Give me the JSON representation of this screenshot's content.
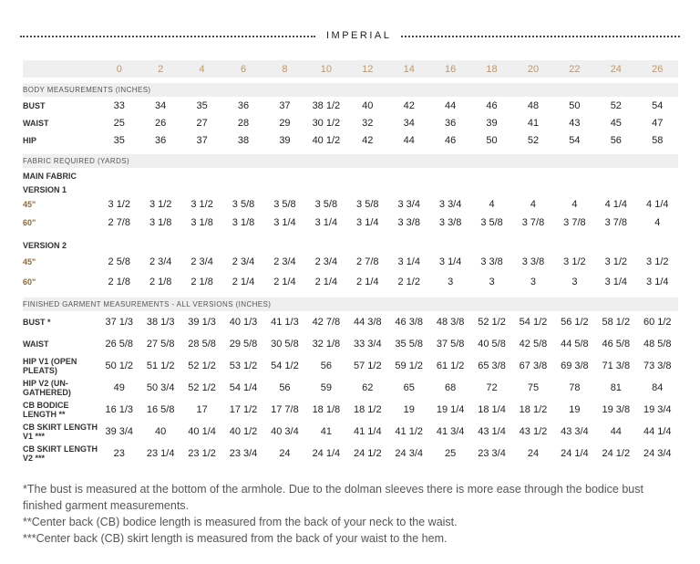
{
  "title": "IMPERIAL",
  "sizes": [
    "0",
    "2",
    "4",
    "6",
    "8",
    "10",
    "12",
    "14",
    "16",
    "18",
    "20",
    "22",
    "24",
    "26"
  ],
  "body_section": "BODY MEASUREMENTS (INCHES)",
  "body_rows": [
    {
      "label": "BUST",
      "values": [
        "33",
        "34",
        "35",
        "36",
        "37",
        "38 1/2",
        "40",
        "42",
        "44",
        "46",
        "48",
        "50",
        "52",
        "54"
      ]
    },
    {
      "label": "WAIST",
      "values": [
        "25",
        "26",
        "27",
        "28",
        "29",
        "30 1/2",
        "32",
        "34",
        "36",
        "39",
        "41",
        "43",
        "45",
        "47"
      ]
    },
    {
      "label": "HIP",
      "values": [
        "35",
        "36",
        "37",
        "38",
        "39",
        "40 1/2",
        "42",
        "44",
        "46",
        "50",
        "52",
        "54",
        "56",
        "58"
      ]
    }
  ],
  "fabric_section": "FABRIC REQUIRED (YARDS)",
  "main_fabric": "MAIN FABRIC",
  "version1": {
    "label": "VERSION 1",
    "rows": [
      {
        "label": "45\"",
        "values": [
          "3 1/2",
          "3 1/2",
          "3 1/2",
          "3 5/8",
          "3 5/8",
          "3 5/8",
          "3 5/8",
          "3 3/4",
          "3 3/4",
          "4",
          "4",
          "4",
          "4 1/4",
          "4 1/4"
        ]
      },
      {
        "label": "60\"",
        "values": [
          "2 7/8",
          "3 1/8",
          "3 1/8",
          "3 1/8",
          "3 1/4",
          "3 1/4",
          "3 1/4",
          "3 3/8",
          "3 3/8",
          "3 5/8",
          "3 7/8",
          "3 7/8",
          "3 7/8",
          "4"
        ]
      }
    ]
  },
  "version2": {
    "label": "VERSION 2",
    "rows": [
      {
        "label": "45\"",
        "values": [
          "2 5/8",
          "2 3/4",
          "2 3/4",
          "2 3/4",
          "2 3/4",
          "2 3/4",
          "2 7/8",
          "3 1/4",
          "3 1/4",
          "3 3/8",
          "3 3/8",
          "3 1/2",
          "3 1/2",
          "3 1/2"
        ]
      },
      {
        "label": "60\"",
        "values": [
          "2 1/8",
          "2 1/8",
          "2 1/8",
          "2 1/4",
          "2 1/4",
          "2 1/4",
          "2 1/4",
          "2 1/2",
          "3",
          "3",
          "3",
          "3",
          "3 1/4",
          "3 1/4"
        ]
      }
    ]
  },
  "finished_section": "FINISHED GARMENT MEASUREMENTS  - ALL VERSIONS (INCHES)",
  "finished_rows": [
    {
      "label": "BUST *",
      "values": [
        "37 1/3",
        "38 1/3",
        "39 1/3",
        "40 1/3",
        "41 1/3",
        "42 7/8",
        "44 3/8",
        "46 3/8",
        "48 3/8",
        "52 1/2",
        "54 1/2",
        "56 1/2",
        "58 1/2",
        "60 1/2"
      ]
    },
    {
      "label": "WAIST",
      "values": [
        "26 5/8",
        "27 5/8",
        "28 5/8",
        "29 5/8",
        "30 5/8",
        "32 1/8",
        "33 3/4",
        "35 5/8",
        "37 5/8",
        "40 5/8",
        "42 5/8",
        "44 5/8",
        "46 5/8",
        "48 5/8"
      ]
    },
    {
      "label": "HIP V1 (OPEN PLEATS)",
      "values": [
        "50 1/2",
        "51 1/2",
        "52 1/2",
        "53 1/2",
        "54 1/2",
        "56",
        "57 1/2",
        "59 1/2",
        "61 1/2",
        "65 3/8",
        "67 3/8",
        "69 3/8",
        "71 3/8",
        "73 3/8"
      ]
    },
    {
      "label": "HIP V2 (UN- GATHERED)",
      "values": [
        "49",
        "50 3/4",
        "52 1/2",
        "54 1/4",
        "56",
        "59",
        "62",
        "65",
        "68",
        "72",
        "75",
        "78",
        "81",
        "84"
      ]
    },
    {
      "label": "CB BODICE LENGTH **",
      "values": [
        "16 1/3",
        "16 5/8",
        "17",
        "17 1/2",
        "17 7/8",
        "18 1/8",
        "18 1/2",
        "19",
        "19 1/4",
        "18 1/4",
        "18 1/2",
        "19",
        "19 3/8",
        "19 3/4"
      ]
    },
    {
      "label": "CB SKIRT LENGTH V1 ***",
      "values": [
        "39 3/4",
        "40",
        "40 1/4",
        "40 1/2",
        "40 3/4",
        "41",
        "41 1/4",
        "41 1/2",
        "41 3/4",
        "43 1/4",
        "43 1/2",
        "43 3/4",
        "44",
        "44 1/4"
      ]
    },
    {
      "label": "CB SKIRT LENGTH V2 ***",
      "values": [
        "23",
        "23 1/4",
        "23 1/2",
        "23 3/4",
        "24",
        "24 1/4",
        "24 1/2",
        "24 3/4",
        "25",
        "23 3/4",
        "24",
        "24 1/4",
        "24 1/2",
        "24 3/4"
      ]
    }
  ],
  "footnotes": [
    "*The bust is measured at the bottom of the armhole. Due to the dolman sleeves there is more ease through the bodice bust finished garment measurements.",
    "**Center back (CB) bodice length is measured from the back of your neck to the waist.",
    "***Center back (CB) skirt length is measured from the back of your waist to the hem."
  ]
}
